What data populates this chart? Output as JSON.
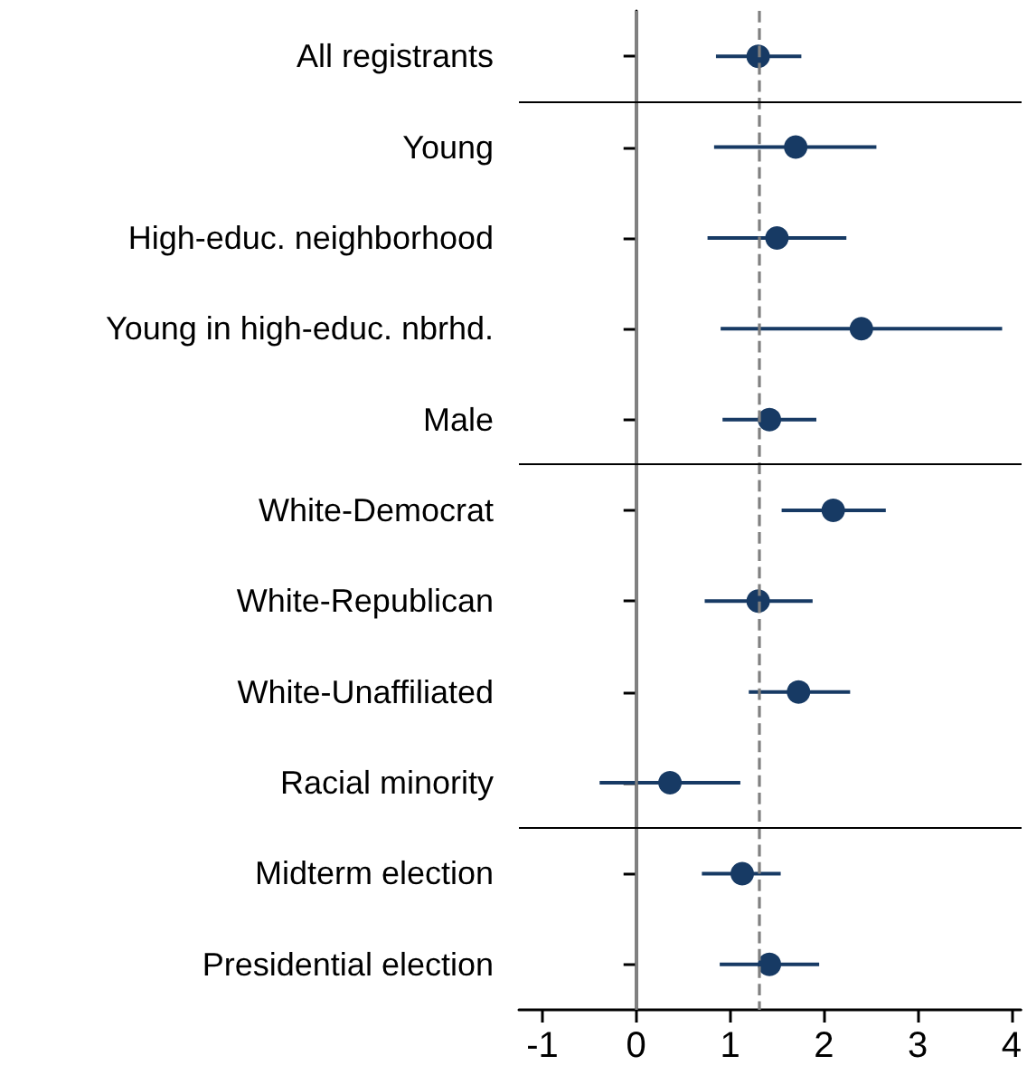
{
  "chart_data": {
    "type": "scatter",
    "orientation": "horizontal",
    "categories": [
      "All registrants",
      "Young",
      "High-educ. neighborhood",
      "Young in high-educ. nbrhd.",
      "Male",
      "White-Democrat",
      "White-Republican",
      "White-Unaffiliated",
      "Racial minority",
      "Midterm election",
      "Presidential election"
    ],
    "series": [
      {
        "color": "#173a64",
        "values": [
          1.3,
          1.7,
          1.5,
          2.4,
          1.42,
          2.1,
          1.3,
          1.73,
          0.36,
          1.13,
          1.42
        ],
        "errors": [
          [
            0.85,
            1.76
          ],
          [
            0.83,
            2.56
          ],
          [
            0.76,
            2.24
          ],
          [
            0.9,
            3.9
          ],
          [
            0.92,
            1.92
          ],
          [
            1.55,
            2.66
          ],
          [
            0.73,
            1.88
          ],
          [
            1.2,
            2.28
          ],
          [
            -0.39,
            1.11
          ],
          [
            0.7,
            1.54
          ],
          [
            0.89,
            1.95
          ]
        ]
      }
    ],
    "xlim": [
      -1.25,
      4.1
    ],
    "xticks": [
      -1,
      0,
      1,
      2,
      3,
      4
    ],
    "ref_lines": [
      {
        "axis": "x",
        "value": 0,
        "color": "#808080",
        "line_style": "solid"
      },
      {
        "axis": "x",
        "value": 1.3,
        "color": "#808080",
        "line_style": "dashed"
      }
    ],
    "marker": "circle",
    "grid": false
  }
}
